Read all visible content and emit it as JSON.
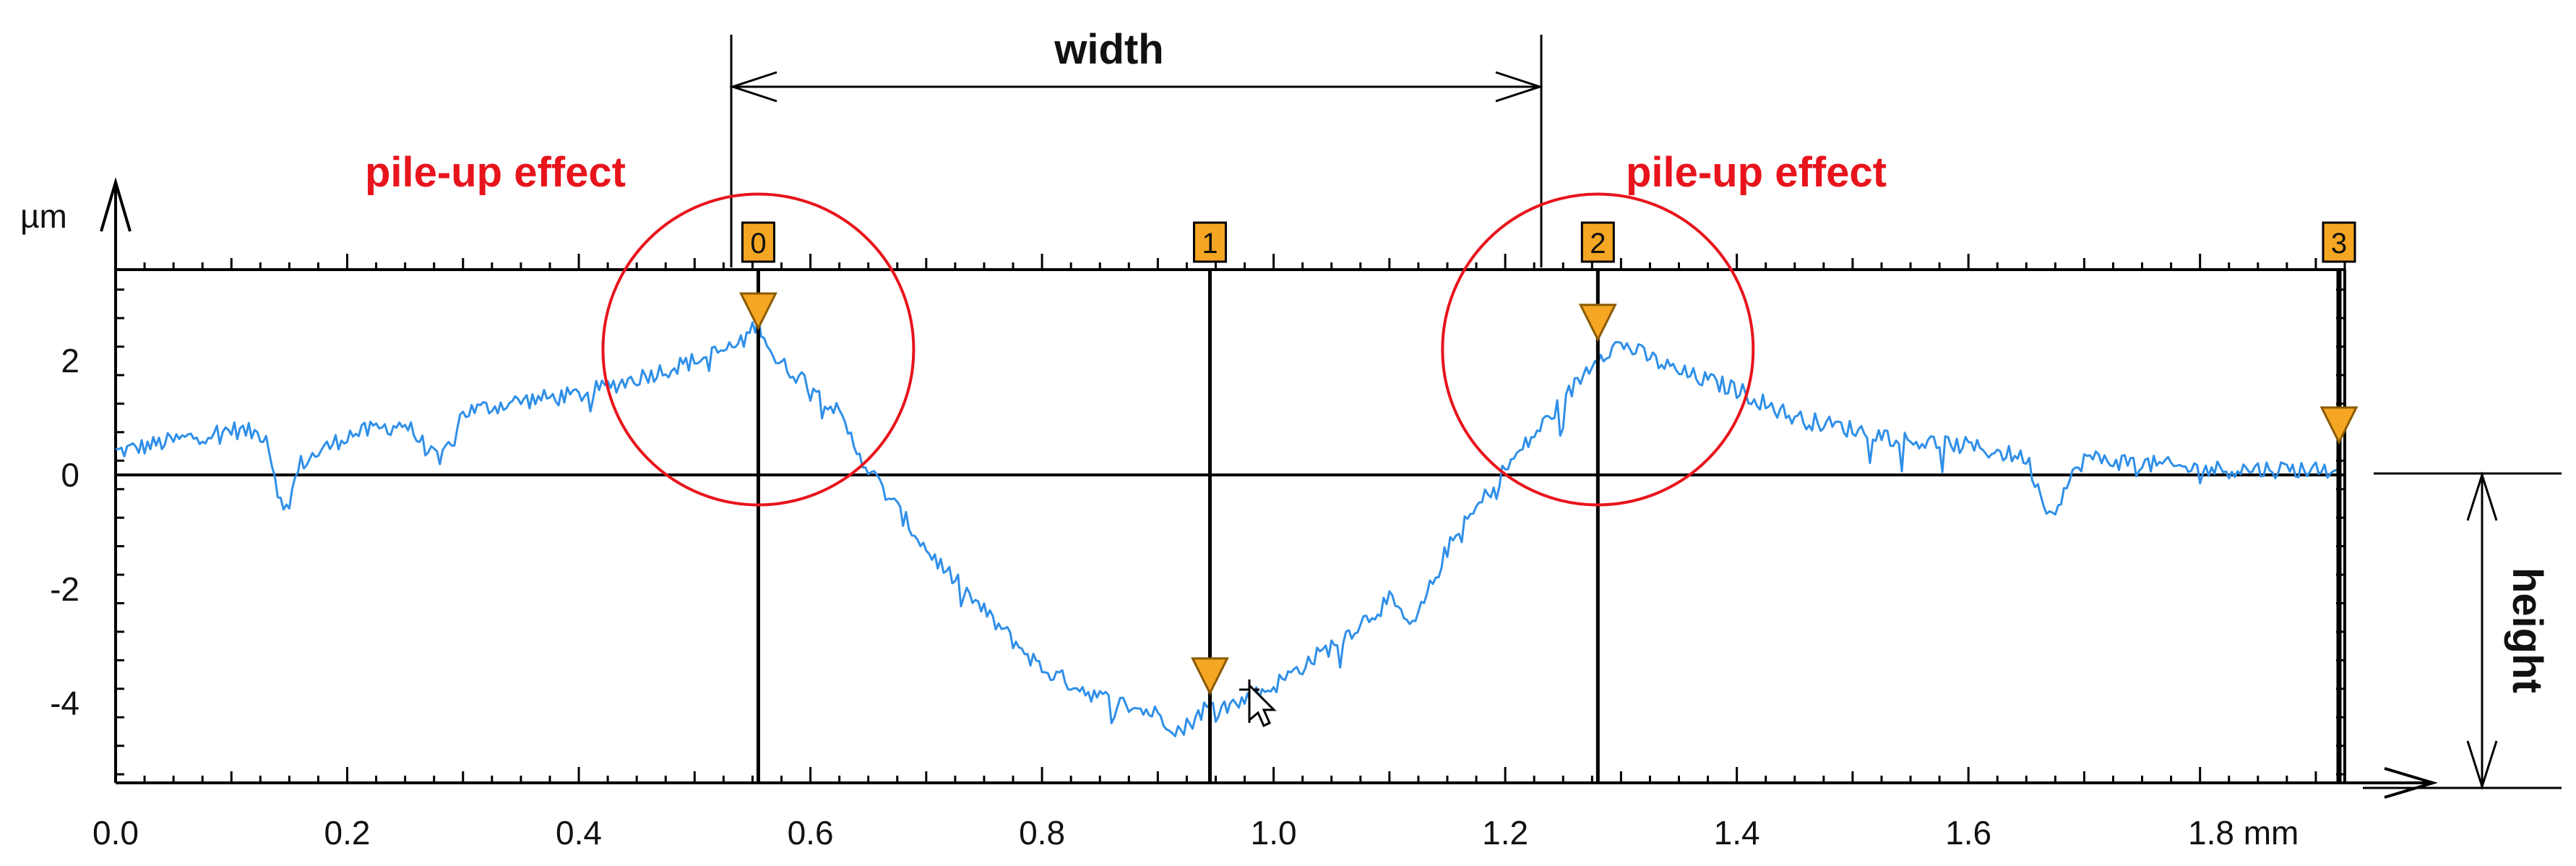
{
  "chart_data": {
    "type": "line",
    "x_unit": "mm",
    "y_unit": "µm",
    "xlim": [
      0,
      1.925
    ],
    "ylim": [
      -5.4,
      3.6
    ],
    "x_ticks": [
      0.0,
      0.2,
      0.4,
      0.6,
      0.8,
      1.0,
      1.2,
      1.4,
      1.6,
      1.8
    ],
    "x_tick_labels": [
      "0.0",
      "0.2",
      "0.4",
      "0.6",
      "0.8",
      "1.0",
      "1.2",
      "1.4",
      "1.6",
      "1.8 mm"
    ],
    "y_ticks": [
      2,
      0,
      -2,
      -4
    ],
    "y_tick_labels": [
      "2",
      "0",
      "-2",
      "-4"
    ],
    "series": [
      {
        "color": "#2f8fe8",
        "x": [
          0.0,
          0.05,
          0.1,
          0.13,
          0.145,
          0.16,
          0.2,
          0.25,
          0.28,
          0.3,
          0.35,
          0.4,
          0.45,
          0.5,
          0.54,
          0.555,
          0.57,
          0.6,
          0.62,
          0.65,
          0.7,
          0.75,
          0.8,
          0.85,
          0.9,
          0.92,
          0.94,
          0.97,
          1.0,
          1.05,
          1.1,
          1.12,
          1.15,
          1.2,
          1.25,
          1.28,
          1.3,
          1.35,
          1.4,
          1.45,
          1.5,
          1.55,
          1.6,
          1.65,
          1.67,
          1.7,
          1.75,
          1.8,
          1.85,
          1.9,
          1.92
        ],
        "y": [
          0.4,
          0.6,
          0.8,
          0.7,
          -0.7,
          0.2,
          0.7,
          0.9,
          0.2,
          1.1,
          1.3,
          1.4,
          1.7,
          2.0,
          2.3,
          2.7,
          2.0,
          1.6,
          1.2,
          0.1,
          -1.3,
          -2.4,
          -3.4,
          -3.9,
          -4.2,
          -4.5,
          -4.1,
          -4.0,
          -3.7,
          -3.0,
          -2.2,
          -2.7,
          -1.3,
          0.1,
          1.3,
          2.1,
          2.3,
          1.8,
          1.5,
          1.0,
          0.8,
          0.6,
          0.5,
          0.3,
          -0.7,
          0.3,
          0.2,
          0.1,
          0.1,
          0.1,
          0.1
        ]
      }
    ],
    "cursors": [
      {
        "label": "0",
        "x": 0.555
      },
      {
        "label": "1",
        "x": 0.945
      },
      {
        "label": "2",
        "x": 1.28
      },
      {
        "label": "3",
        "x": 1.92
      }
    ],
    "annotations": {
      "width": "width",
      "height": "height",
      "pile_up_left": "pile-up effect",
      "pile_up_right": "pile-up effect"
    },
    "grid": false,
    "colors": {
      "trace": "#2f8fe8",
      "cursor_marker": "#f5a623",
      "annotation_red": "#e8141c"
    }
  }
}
